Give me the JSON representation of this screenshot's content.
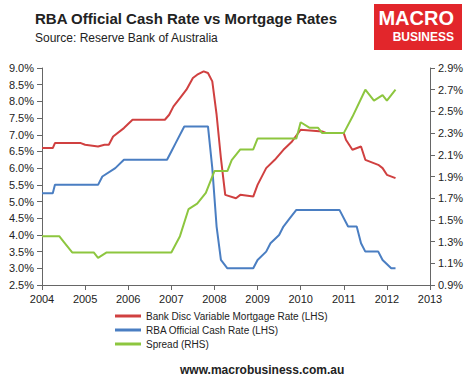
{
  "chart_data": {
    "type": "line",
    "title": "RBA Official Cash Rate vs Mortgage Rates",
    "subtitle": "Source: Reserve Bank of Australia",
    "annotations": [
      "MACRO",
      "BUSINESS",
      "www.macrobusiness.com.au"
    ],
    "xlim": [
      2004,
      2013
    ],
    "xticks": [
      2004,
      2005,
      2006,
      2007,
      2008,
      2009,
      2010,
      2011,
      2012,
      2013
    ],
    "ylim": [
      2.5,
      9.0
    ],
    "yticks": [
      {
        "value": 2.5,
        "label": "2.5%"
      },
      {
        "value": 3.0,
        "label": "3.0%"
      },
      {
        "value": 3.5,
        "label": "3.5%"
      },
      {
        "value": 4.0,
        "label": "4.0%"
      },
      {
        "value": 4.5,
        "label": "4.5%"
      },
      {
        "value": 5.0,
        "label": "5.0%"
      },
      {
        "value": 5.5,
        "label": "5.5%"
      },
      {
        "value": 6.0,
        "label": "6.0%"
      },
      {
        "value": 6.5,
        "label": "6.5%"
      },
      {
        "value": 7.0,
        "label": "7.0%"
      },
      {
        "value": 7.5,
        "label": "7.5%"
      },
      {
        "value": 8.0,
        "label": "8.0%"
      },
      {
        "value": 8.5,
        "label": "8.5%"
      },
      {
        "value": 9.0,
        "label": "9.0%"
      }
    ],
    "y2lim": [
      0.9,
      2.9
    ],
    "y2ticks": [
      {
        "value": 0.9,
        "label": "0.9%"
      },
      {
        "value": 1.1,
        "label": "1.1%"
      },
      {
        "value": 1.3,
        "label": "1.3%"
      },
      {
        "value": 1.5,
        "label": "1.5%"
      },
      {
        "value": 1.7,
        "label": "1.7%"
      },
      {
        "value": 1.9,
        "label": "1.9%"
      },
      {
        "value": 2.1,
        "label": "2.1%"
      },
      {
        "value": 2.3,
        "label": "2.3%"
      },
      {
        "value": 2.5,
        "label": "2.5%"
      },
      {
        "value": 2.7,
        "label": "2.7%"
      },
      {
        "value": 2.9,
        "label": "2.9%"
      }
    ],
    "grid": false,
    "legend": "bottom",
    "series": [
      {
        "name": "Bank Disc Variable Mortgage Rate (LHS)",
        "color": "#d04040",
        "axis": "y",
        "x": [
          2004.0,
          2004.25,
          2004.3,
          2004.9,
          2005.0,
          2005.3,
          2005.45,
          2005.55,
          2005.65,
          2005.9,
          2006.1,
          2006.85,
          2006.95,
          2007.05,
          2007.2,
          2007.35,
          2007.5,
          2007.6,
          2007.75,
          2007.85,
          2007.95,
          2008.05,
          2008.15,
          2008.25,
          2008.5,
          2008.6,
          2008.9,
          2009.0,
          2009.2,
          2009.4,
          2009.6,
          2009.8,
          2010.0,
          2010.5,
          2010.6,
          2011.0,
          2011.05,
          2011.2,
          2011.4,
          2011.5,
          2011.8,
          2011.9,
          2012.0,
          2012.2
        ],
        "values": [
          6.6,
          6.6,
          6.75,
          6.75,
          6.7,
          6.65,
          6.7,
          6.7,
          6.95,
          7.2,
          7.45,
          7.45,
          7.6,
          7.85,
          8.1,
          8.35,
          8.7,
          8.8,
          8.9,
          8.85,
          8.6,
          7.6,
          6.3,
          5.2,
          5.1,
          5.2,
          5.15,
          5.5,
          6.0,
          6.25,
          6.55,
          6.8,
          7.15,
          7.1,
          7.05,
          7.05,
          6.85,
          6.55,
          6.65,
          6.25,
          6.1,
          6.0,
          5.8,
          5.7
        ]
      },
      {
        "name": "RBA Official Cash Rate (LHS)",
        "color": "#4a7ec2",
        "axis": "y",
        "x": [
          2004.0,
          2004.25,
          2004.3,
          2005.3,
          2005.4,
          2005.7,
          2005.9,
          2006.9,
          2007.0,
          2007.1,
          2007.3,
          2007.85,
          2007.95,
          2008.05,
          2008.15,
          2008.3,
          2008.9,
          2009.0,
          2009.2,
          2009.3,
          2009.5,
          2009.6,
          2009.75,
          2009.9,
          2010.9,
          2011.1,
          2011.3,
          2011.4,
          2011.5,
          2011.8,
          2011.9,
          2012.1,
          2012.2
        ],
        "values": [
          5.25,
          5.25,
          5.5,
          5.5,
          5.75,
          6.0,
          6.25,
          6.25,
          6.5,
          6.75,
          7.25,
          7.25,
          6.0,
          4.25,
          3.25,
          3.0,
          3.0,
          3.25,
          3.5,
          3.75,
          4.0,
          4.25,
          4.5,
          4.75,
          4.75,
          4.25,
          4.25,
          3.75,
          3.5,
          3.5,
          3.25,
          3.0,
          3.0
        ]
      },
      {
        "name": "Spread (RHS)",
        "color": "#8dc63f",
        "axis": "y2",
        "x": [
          2004.0,
          2004.4,
          2004.5,
          2004.7,
          2005.2,
          2005.3,
          2005.5,
          2007.0,
          2007.2,
          2007.4,
          2007.6,
          2007.8,
          2008.0,
          2008.3,
          2008.4,
          2008.6,
          2008.9,
          2009.0,
          2009.9,
          2010.0,
          2010.2,
          2010.4,
          2010.5,
          2011.0,
          2011.2,
          2011.5,
          2011.7,
          2011.9,
          2012.0,
          2012.2
        ],
        "values": [
          1.35,
          1.35,
          1.3,
          1.2,
          1.2,
          1.15,
          1.2,
          1.2,
          1.35,
          1.6,
          1.65,
          1.75,
          1.95,
          1.95,
          2.05,
          2.15,
          2.15,
          2.25,
          2.25,
          2.4,
          2.35,
          2.35,
          2.3,
          2.3,
          2.45,
          2.7,
          2.6,
          2.65,
          2.6,
          2.7
        ]
      }
    ]
  }
}
